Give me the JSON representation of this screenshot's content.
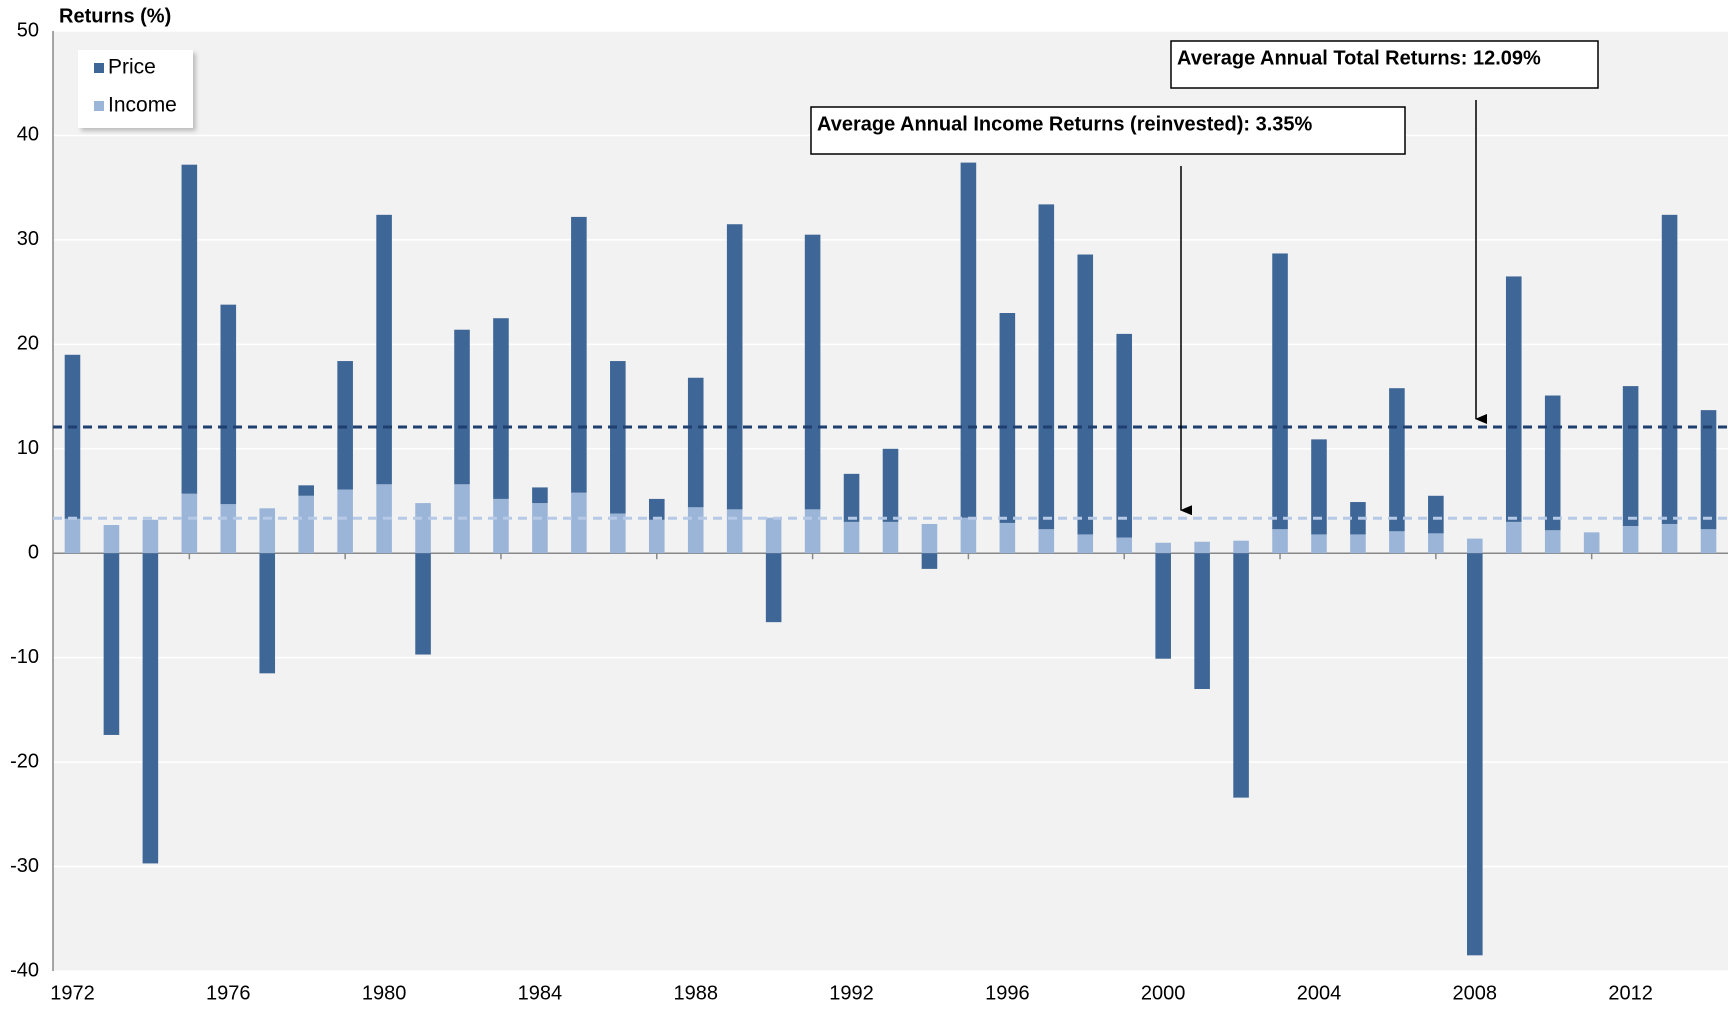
{
  "chart_data": {
    "type": "bar",
    "stacked": true,
    "y_label": "Returns (%)",
    "categories": [
      1972,
      null,
      null,
      null,
      1976,
      null,
      null,
      null,
      1980,
      null,
      null,
      null,
      1984,
      null,
      null,
      null,
      1988,
      null,
      null,
      null,
      1992,
      null,
      null,
      null,
      1996,
      null,
      null,
      null,
      2000,
      null,
      null,
      null,
      2004,
      null,
      null,
      null,
      2008,
      null,
      null,
      null,
      2012,
      null,
      null
    ],
    "series": [
      {
        "name": "Income",
        "color": "#9bb5d9",
        "values": [
          3.3,
          2.7,
          3.2,
          5.7,
          4.7,
          4.3,
          5.5,
          6.1,
          6.6,
          4.8,
          6.6,
          5.2,
          4.8,
          5.8,
          3.8,
          3.2,
          4.4,
          4.2,
          3.4,
          4.2,
          3.0,
          3.0,
          2.8,
          3.4,
          2.9,
          2.3,
          1.8,
          1.5,
          1.0,
          1.1,
          1.2,
          2.3,
          1.8,
          1.8,
          2.1,
          1.9,
          1.4,
          3.0,
          2.2,
          2.0,
          2.6,
          2.8,
          2.3
        ]
      },
      {
        "name": "Price",
        "color": "#3e6797",
        "values": [
          15.7,
          -17.4,
          -29.7,
          31.5,
          19.1,
          -11.5,
          1.0,
          12.3,
          25.8,
          -9.7,
          14.8,
          17.3,
          1.5,
          26.4,
          14.6,
          2.0,
          12.4,
          27.3,
          -6.6,
          26.3,
          4.6,
          7.0,
          -1.5,
          34.0,
          20.1,
          31.1,
          26.8,
          19.5,
          -10.1,
          -13.0,
          -23.4,
          26.4,
          9.1,
          3.1,
          13.7,
          3.6,
          -38.5,
          23.5,
          12.9,
          0,
          13.4,
          29.6,
          11.4
        ]
      }
    ],
    "reference_lines": [
      {
        "label": "Average Annual Total Returns: 12.09%",
        "value": 12.09,
        "color": "#1f3f6e"
      },
      {
        "label": "Average Annual Income Returns (reinvested): 3.35%",
        "value": 3.35,
        "color": "#b6c9e6"
      }
    ],
    "ylim": [
      -40,
      50
    ],
    "yticks": [
      -40,
      -30,
      -20,
      -10,
      0,
      10,
      20,
      30,
      40,
      50
    ],
    "grid": true,
    "legend": "upper left"
  }
}
